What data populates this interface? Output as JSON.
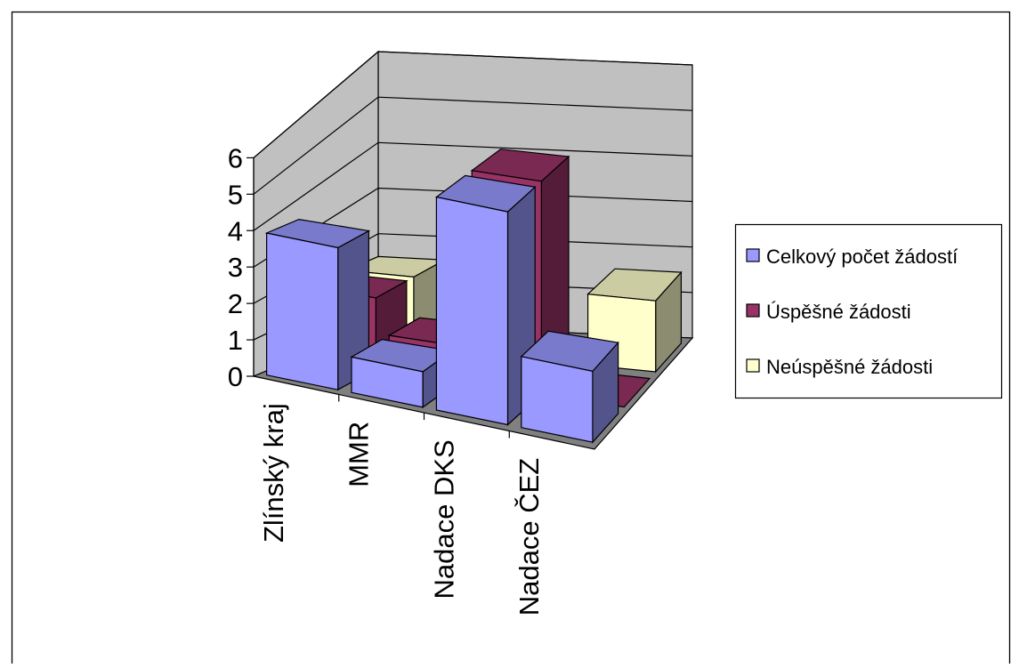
{
  "chart_data": {
    "type": "bar",
    "subtype": "3d-clustered-column",
    "title": "",
    "categories": [
      "Zlínský kraj",
      "MMR",
      "Nadace DKS",
      "Nadace ČEZ"
    ],
    "series": [
      {
        "name": "Celkový počet žádostí",
        "values": [
          4,
          1,
          6,
          2
        ],
        "color": "#9999ff"
      },
      {
        "name": "Úspěšné žádosti",
        "values": [
          2,
          1,
          6,
          0
        ],
        "color": "#993366"
      },
      {
        "name": "Neúspěšné žádosti",
        "values": [
          2,
          0,
          0,
          2
        ],
        "color": "#ffffcc"
      }
    ],
    "y_ticks": [
      "0",
      "1",
      "2",
      "3",
      "4",
      "5",
      "6"
    ],
    "ylim": [
      0,
      6
    ],
    "grid": true,
    "legend_position": "right",
    "wall_color": "#c0c0c0",
    "floor_color": "#808080"
  }
}
